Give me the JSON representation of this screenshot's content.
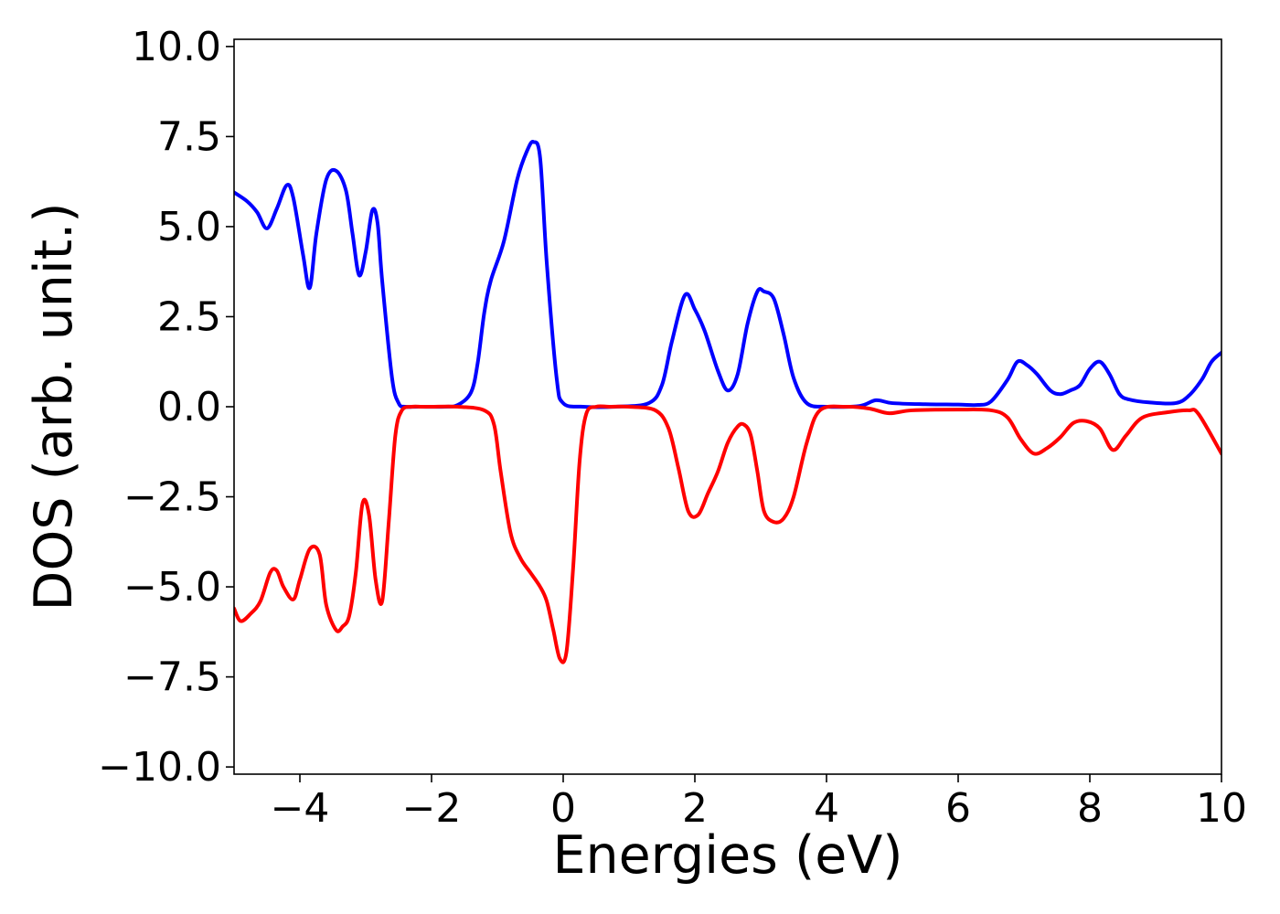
{
  "chart_data": {
    "type": "line",
    "title": "",
    "xlabel": "Energies (eV)",
    "ylabel": "DOS (arb. unit.)",
    "xlim": [
      -5,
      10
    ],
    "ylim": [
      -10.2,
      10.2
    ],
    "xticks": [
      -4,
      -2,
      0,
      2,
      4,
      6,
      8,
      10
    ],
    "xtick_labels": [
      "−4",
      "−2",
      "0",
      "2",
      "4",
      "6",
      "8",
      "10"
    ],
    "yticks": [
      10,
      7.5,
      5,
      2.5,
      0,
      -2.5,
      -5,
      -7.5,
      -10
    ],
    "ytick_labels": [
      "10.0",
      "7.5",
      "5.0",
      "2.5",
      "0.0",
      "−2.5",
      "−5.0",
      "−7.5",
      "−10.0"
    ],
    "grid": false,
    "legend": "none",
    "series": [
      {
        "color": "#0000ff",
        "x": [
          -5.0,
          -4.8,
          -4.65,
          -4.5,
          -4.35,
          -4.2,
          -4.1,
          -3.95,
          -3.85,
          -3.75,
          -3.6,
          -3.45,
          -3.3,
          -3.2,
          -3.1,
          -3.0,
          -2.9,
          -2.82,
          -2.75,
          -2.6,
          -2.5,
          -2.4,
          -2.2,
          -1.8,
          -1.6,
          -1.4,
          -1.3,
          -1.2,
          -1.1,
          -0.9,
          -0.7,
          -0.55,
          -0.45,
          -0.35,
          -0.25,
          -0.1,
          0.0,
          0.3,
          0.8,
          1.3,
          1.5,
          1.65,
          1.85,
          2.0,
          2.15,
          2.35,
          2.5,
          2.65,
          2.8,
          2.95,
          3.05,
          3.2,
          3.35,
          3.5,
          3.7,
          4.0,
          4.5,
          4.75,
          5.0,
          5.5,
          6.0,
          6.3,
          6.5,
          6.75,
          6.9,
          7.05,
          7.2,
          7.4,
          7.55,
          7.7,
          7.85,
          8.0,
          8.15,
          8.3,
          8.45,
          8.6,
          8.9,
          9.3,
          9.5,
          9.7,
          9.85,
          10.0
        ],
        "values": [
          5.95,
          5.7,
          5.4,
          4.95,
          5.5,
          6.15,
          5.8,
          4.2,
          3.3,
          4.8,
          6.3,
          6.55,
          6.0,
          4.8,
          3.65,
          4.3,
          5.45,
          5.1,
          3.5,
          0.8,
          0.1,
          0.0,
          0.0,
          0.0,
          0.05,
          0.4,
          1.2,
          2.6,
          3.5,
          4.6,
          6.3,
          7.1,
          7.35,
          6.9,
          4.0,
          0.8,
          0.1,
          0.0,
          0.0,
          0.1,
          0.6,
          1.8,
          3.1,
          2.7,
          2.1,
          1.0,
          0.45,
          0.9,
          2.3,
          3.2,
          3.2,
          3.0,
          2.0,
          0.8,
          0.1,
          0.0,
          0.02,
          0.18,
          0.1,
          0.07,
          0.06,
          0.05,
          0.15,
          0.75,
          1.25,
          1.15,
          0.9,
          0.45,
          0.35,
          0.45,
          0.6,
          1.05,
          1.25,
          0.9,
          0.35,
          0.2,
          0.12,
          0.1,
          0.3,
          0.75,
          1.25,
          1.5
        ]
      },
      {
        "color": "#ff0000",
        "x": [
          -5.0,
          -4.9,
          -4.75,
          -4.6,
          -4.45,
          -4.35,
          -4.25,
          -4.1,
          -4.0,
          -3.85,
          -3.7,
          -3.6,
          -3.45,
          -3.35,
          -3.25,
          -3.15,
          -3.05,
          -2.95,
          -2.85,
          -2.75,
          -2.65,
          -2.55,
          -2.45,
          -2.3,
          -2.15,
          -2.0,
          -1.6,
          -1.2,
          -1.05,
          -0.95,
          -0.8,
          -0.65,
          -0.5,
          -0.35,
          -0.25,
          -0.15,
          -0.05,
          0.05,
          0.15,
          0.25,
          0.35,
          0.5,
          0.7,
          1.0,
          1.4,
          1.6,
          1.75,
          1.9,
          2.05,
          2.2,
          2.35,
          2.5,
          2.65,
          2.75,
          2.85,
          2.95,
          3.05,
          3.2,
          3.35,
          3.5,
          3.7,
          3.9,
          4.3,
          4.65,
          4.95,
          5.3,
          6.0,
          6.5,
          6.75,
          6.95,
          7.15,
          7.35,
          7.55,
          7.75,
          7.95,
          8.15,
          8.35,
          8.55,
          8.8,
          9.2,
          9.5,
          9.65,
          10.0
        ],
        "values": [
          -5.6,
          -5.95,
          -5.75,
          -5.4,
          -4.6,
          -4.55,
          -5.0,
          -5.35,
          -4.8,
          -3.95,
          -4.1,
          -5.5,
          -6.2,
          -6.1,
          -5.8,
          -4.6,
          -2.7,
          -3.0,
          -4.8,
          -5.4,
          -3.2,
          -0.8,
          -0.1,
          0.0,
          0.0,
          0.0,
          0.0,
          -0.1,
          -0.5,
          -1.8,
          -3.5,
          -4.2,
          -4.6,
          -5.0,
          -5.4,
          -6.2,
          -7.0,
          -6.8,
          -4.5,
          -1.5,
          -0.2,
          0.0,
          0.0,
          0.0,
          -0.1,
          -0.6,
          -1.7,
          -2.9,
          -3.0,
          -2.4,
          -1.8,
          -1.0,
          -0.55,
          -0.5,
          -0.8,
          -1.8,
          -2.9,
          -3.2,
          -3.1,
          -2.5,
          -1.0,
          -0.1,
          0.0,
          -0.05,
          -0.18,
          -0.1,
          -0.08,
          -0.1,
          -0.3,
          -0.9,
          -1.3,
          -1.15,
          -0.85,
          -0.45,
          -0.4,
          -0.6,
          -1.2,
          -0.8,
          -0.3,
          -0.15,
          -0.1,
          -0.2,
          -1.3
        ]
      }
    ]
  }
}
